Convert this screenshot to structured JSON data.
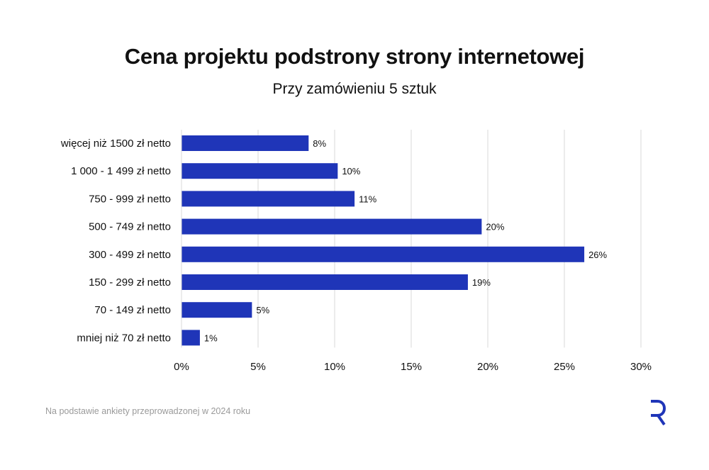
{
  "chart_data": {
    "type": "bar",
    "orientation": "horizontal",
    "title": "Cena projektu podstrony strony internetowej",
    "subtitle": "Przy zamówieniu 5 sztuk",
    "categories": [
      "więcej niż 1500 zł netto",
      "1 000 - 1 499 zł netto",
      "750 - 999 zł netto",
      "500 - 749 zł netto",
      "300 - 499 zł netto",
      "150 - 299 zł netto",
      "70 - 149 zł netto",
      "mniej niż 70 zł netto"
    ],
    "values": [
      8.3,
      10.2,
      11.3,
      19.6,
      26.3,
      18.7,
      4.6,
      1.2
    ],
    "value_labels": [
      "8%",
      "10%",
      "11%",
      "20%",
      "26%",
      "19%",
      "5%",
      "1%"
    ],
    "xlim": [
      0,
      30
    ],
    "x_ticks": [
      0,
      5,
      10,
      15,
      20,
      25,
      30
    ],
    "x_tick_labels": [
      "0%",
      "5%",
      "10%",
      "15%",
      "20%",
      "25%",
      "30%"
    ],
    "xlabel": "",
    "ylabel": "",
    "grid": "vertical",
    "legend": "none",
    "bar_color": "#1f35b8"
  },
  "footnote": "Na podstawie ankiety przeprowadzonej w 2024 roku",
  "logo": {
    "icon": "r-logo-icon",
    "color": "#1f35b8"
  }
}
